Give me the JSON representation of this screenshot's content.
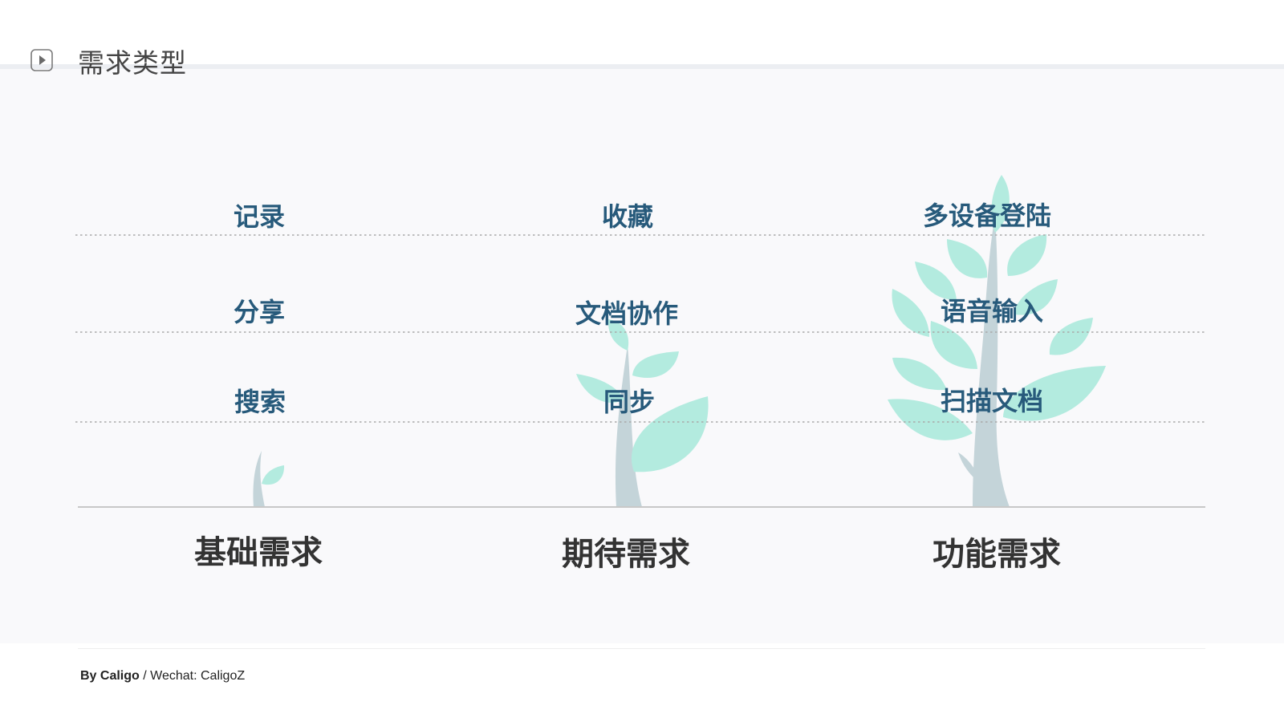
{
  "header": {
    "title": "需求类型",
    "icon": "play-icon"
  },
  "diagram": {
    "columns": [
      {
        "category": "基础需求",
        "items": [
          "记录",
          "分享",
          "搜索"
        ],
        "tree": "sprout"
      },
      {
        "category": "期待需求",
        "items": [
          "收藏",
          "文档协作",
          "同步"
        ],
        "tree": "sapling"
      },
      {
        "category": "功能需求",
        "items": [
          "多设备登陆",
          "语音输入",
          "扫描文档"
        ],
        "tree": "tree"
      }
    ],
    "colors": {
      "item_text": "#275a7b",
      "category_text": "#333333",
      "leaf": "#b3ebdf",
      "trunk": "#c4d4d9",
      "dotted_line": "#a9a9a9",
      "baseline": "#c8c8c8"
    }
  },
  "footer": {
    "author": "By Caligo",
    "separator": " / ",
    "contact": "Wechat: CaligoZ"
  }
}
